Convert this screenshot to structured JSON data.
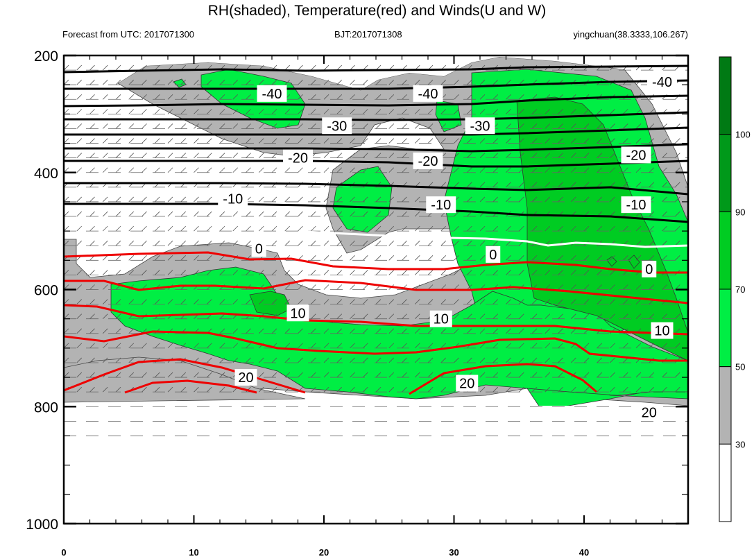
{
  "title": "RH(shaded), Temperature(red) and Winds(U and W)",
  "subtitle_left": "Forecast from UTC: 2017071300",
  "subtitle_center": "BJT:2017071308",
  "subtitle_right": "yingchuan(38.3333,106.267)",
  "colors": {
    "rh_30_50": "#b3b3b3",
    "rh_50_70": "#00ee44",
    "rh_70_90": "#00cc22",
    "rh_90_100": "#00991a",
    "rh_100_plus": "#007a14",
    "temp_positive": "#ee0000",
    "temp_negative": "#000000",
    "zero_isotherm": "#ffffff"
  },
  "chart_data": {
    "type": "contour",
    "x_ticks": [
      0,
      10,
      20,
      30,
      40
    ],
    "xlim": [
      0,
      48
    ],
    "y_ticks": [
      200,
      400,
      600,
      800,
      1000
    ],
    "ylim": [
      200,
      1000
    ],
    "y_reversed": true,
    "colorbar_labels": [
      30,
      50,
      70,
      90,
      100
    ],
    "temperature_labels": [
      {
        "value": "-40",
        "x": 16,
        "y": 265
      },
      {
        "value": "-40",
        "x": 28,
        "y": 265
      },
      {
        "value": "-40",
        "x": 46,
        "y": 245
      },
      {
        "value": "-30",
        "x": 21,
        "y": 320
      },
      {
        "value": "-30",
        "x": 32,
        "y": 320
      },
      {
        "value": "-20",
        "x": 18,
        "y": 375
      },
      {
        "value": "-20",
        "x": 28,
        "y": 380
      },
      {
        "value": "-20",
        "x": 44,
        "y": 370
      },
      {
        "value": "-10",
        "x": 13,
        "y": 445
      },
      {
        "value": "-10",
        "x": 29,
        "y": 455
      },
      {
        "value": "-10",
        "x": 44,
        "y": 455
      },
      {
        "value": "0",
        "x": 15,
        "y": 530
      },
      {
        "value": "0",
        "x": 33,
        "y": 540
      },
      {
        "value": "0",
        "x": 45,
        "y": 565
      },
      {
        "value": "10",
        "x": 18,
        "y": 640
      },
      {
        "value": "10",
        "x": 29,
        "y": 650
      },
      {
        "value": "10",
        "x": 46,
        "y": 670
      },
      {
        "value": "20",
        "x": 14,
        "y": 750
      },
      {
        "value": "20",
        "x": 31,
        "y": 760
      },
      {
        "value": "20",
        "x": 45,
        "y": 810
      }
    ]
  }
}
